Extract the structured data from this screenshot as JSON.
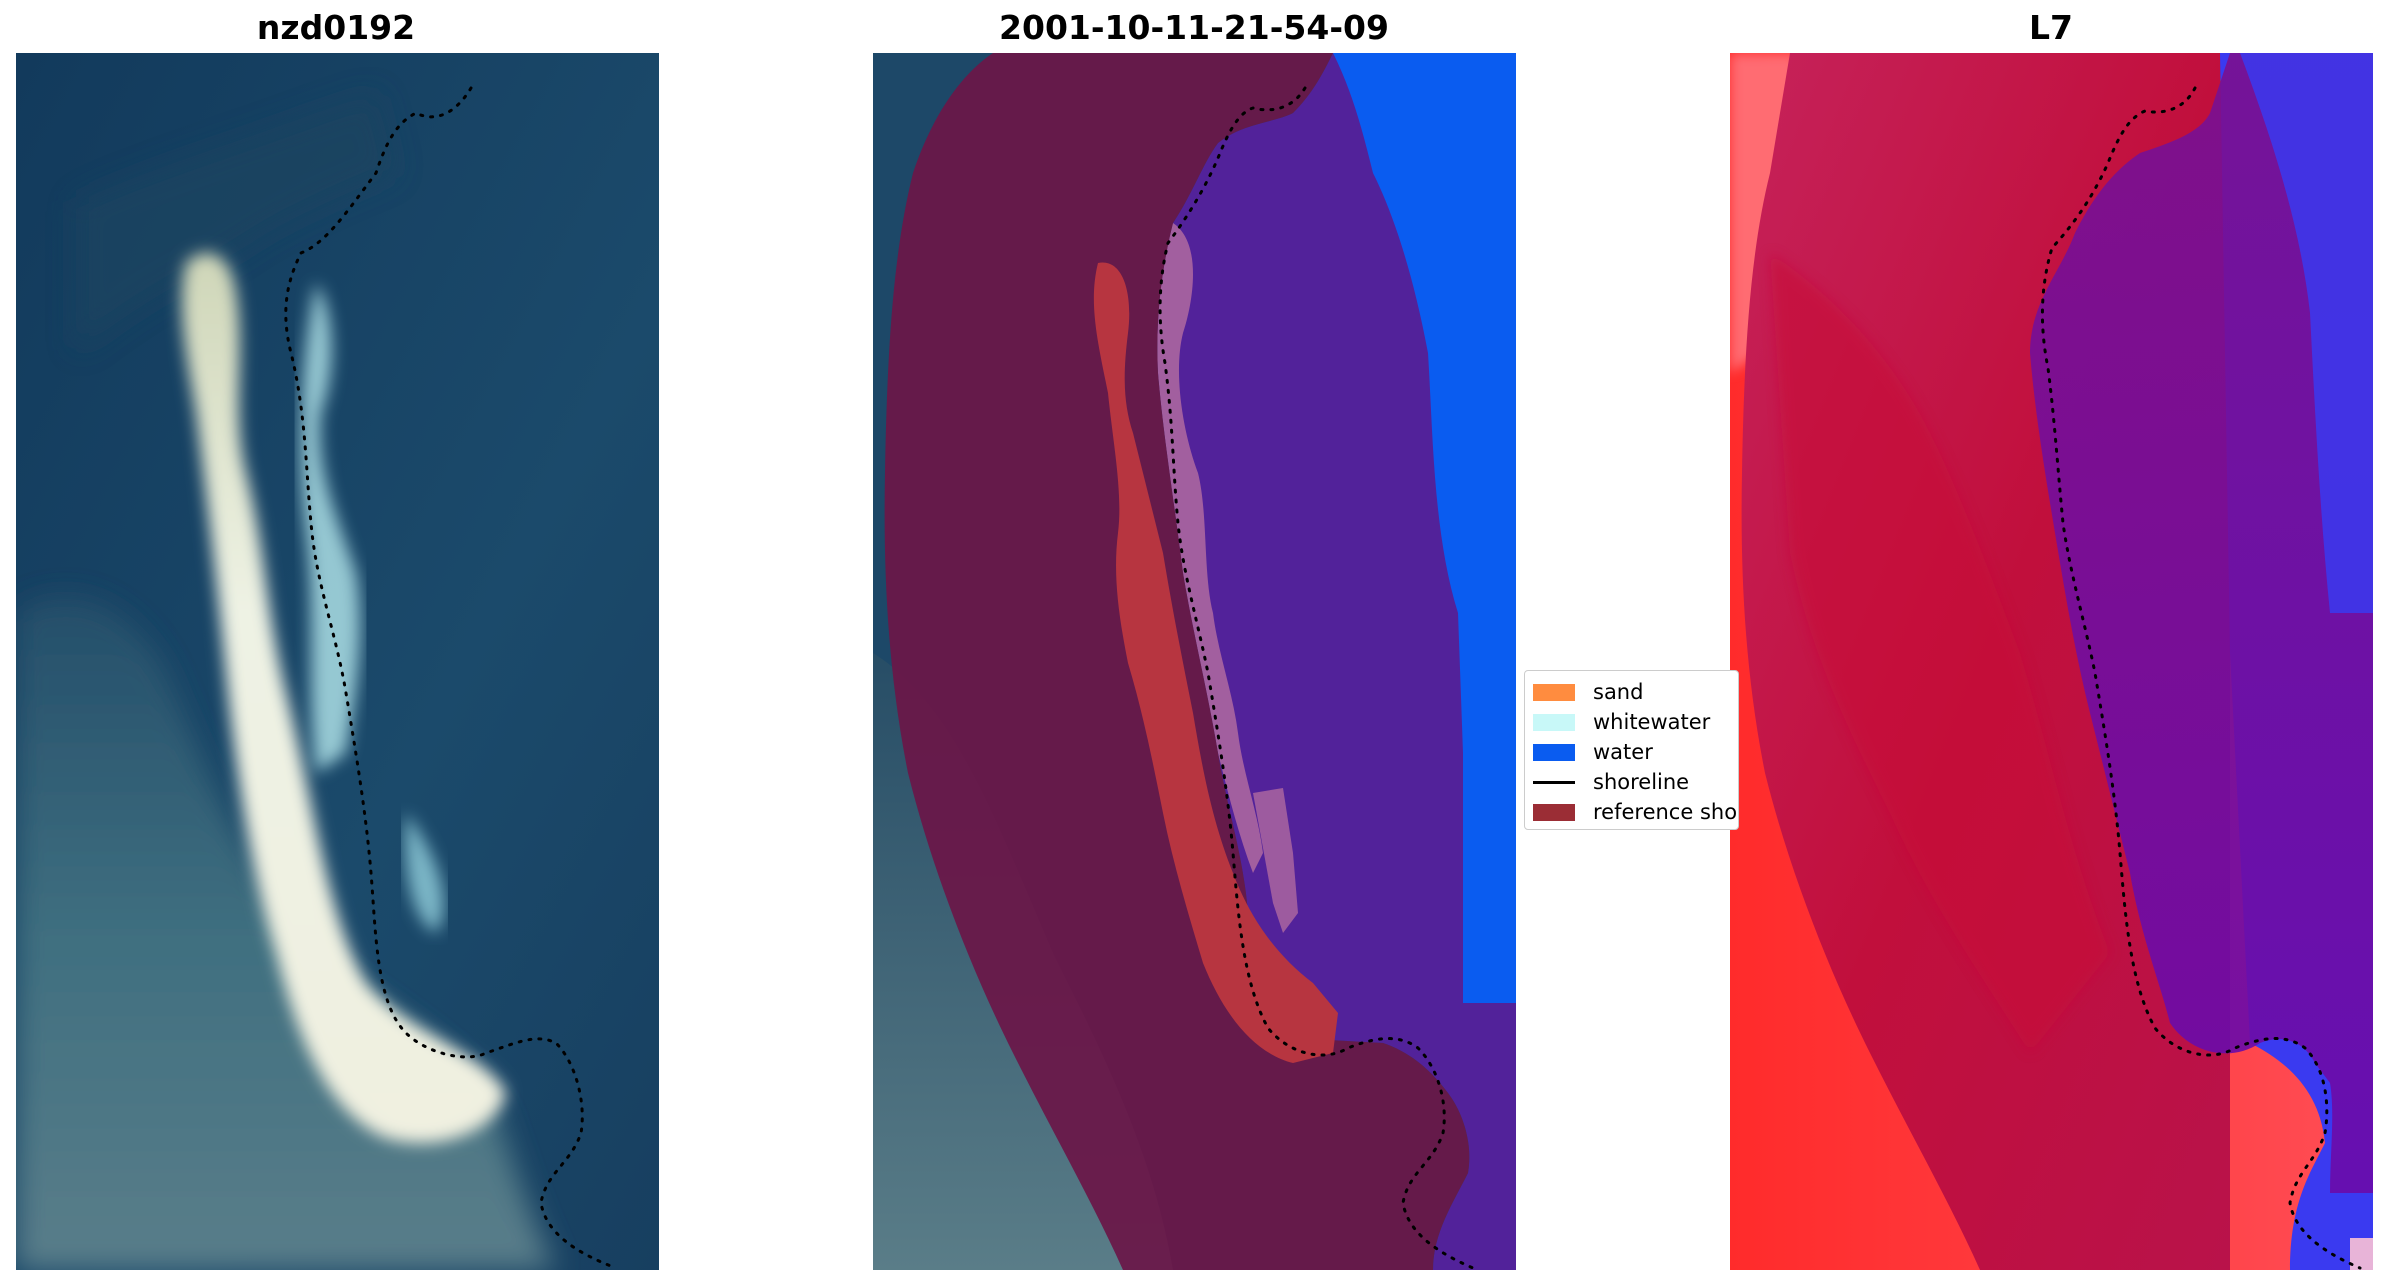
{
  "figure": {
    "panels": [
      {
        "title": "nzd0192"
      },
      {
        "title": "2001-10-11-21-54-09"
      },
      {
        "title": "L7"
      }
    ]
  },
  "legend": {
    "items": [
      {
        "label": "sand",
        "color": "#ff8c3f",
        "kind": "patch"
      },
      {
        "label": "whitewater",
        "color": "#c8f8f8",
        "kind": "patch"
      },
      {
        "label": "water",
        "color": "#0a5cf0",
        "kind": "patch"
      },
      {
        "label": "shoreline",
        "color": "#000000",
        "kind": "line"
      },
      {
        "label": "reference sho",
        "color": "#9b2d35",
        "kind": "patch"
      }
    ]
  },
  "colors": {
    "ocean_dark": "#163f63",
    "ocean_mid": "#1c4a6c",
    "sand_bright": "#e8efdf",
    "whitewater_tint": "#bdf4f7",
    "land_overlay": "#6a1748",
    "water_class": "#52229a",
    "ref_shoreline": "#b73540",
    "index_high": "#ff2020",
    "index_mid": "#c4174c",
    "index_low": "#6a0bab",
    "index_water": "#3a3af0"
  }
}
